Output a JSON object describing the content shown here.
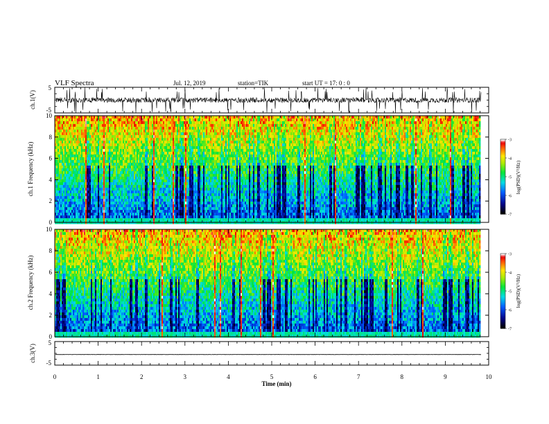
{
  "header": {
    "title": "VLF Spectra",
    "date": "Jul. 12, 2019",
    "station": "station=TIK",
    "start_ut": "start UT = 17: 0 : 0"
  },
  "chart_data": [
    {
      "type": "line",
      "ylabel": "ch.1(V)",
      "xlim": [
        0,
        9.83
      ],
      "ylim": [
        -5,
        5
      ],
      "y_ticks": [
        "5",
        "-5"
      ],
      "description_of_series": "dense noisy waveform near zero with frequent spikes up to about +5 and -5",
      "baseline": 0,
      "noise_amplitude": 1.0,
      "spike_amplitude": 5
    },
    {
      "type": "heatmap",
      "ylabel": "ch.1 Frequency (kHz)",
      "xlim": [
        0,
        9.83
      ],
      "ylim": [
        0,
        10
      ],
      "y_ticks": [
        "0",
        "2",
        "4",
        "6",
        "8",
        "10"
      ],
      "colorbar": {
        "label": "log(PSD)(V²/Hz)",
        "range": [
          -7,
          -3
        ],
        "ticks": [
          "-3",
          "-4",
          "-5",
          "-6",
          "-7"
        ]
      }
    },
    {
      "type": "heatmap",
      "ylabel": "ch.2 Frequency (kHz)",
      "xlim": [
        0,
        9.83
      ],
      "ylim": [
        0,
        10
      ],
      "y_ticks": [
        "0",
        "2",
        "4",
        "6",
        "8",
        "10"
      ],
      "colorbar": {
        "label": "log(PSD)(V²/Hz)",
        "range": [
          -7,
          -3
        ],
        "ticks": [
          "-3",
          "-4",
          "-5",
          "-6",
          "-7"
        ]
      }
    },
    {
      "type": "line",
      "ylabel": "ch.3(V)",
      "xlim": [
        0,
        9.83
      ],
      "ylim": [
        -5,
        5
      ],
      "y_ticks": [
        "5",
        "-5"
      ],
      "description_of_series": "nearly flat line slightly below zero",
      "baseline": -0.5,
      "noise_amplitude": 0.05
    }
  ],
  "x_axis": {
    "label": "Time (min)",
    "range": [
      0,
      10
    ],
    "ticks": [
      "0",
      "1",
      "2",
      "3",
      "4",
      "5",
      "6",
      "7",
      "8",
      "9",
      "10"
    ]
  }
}
